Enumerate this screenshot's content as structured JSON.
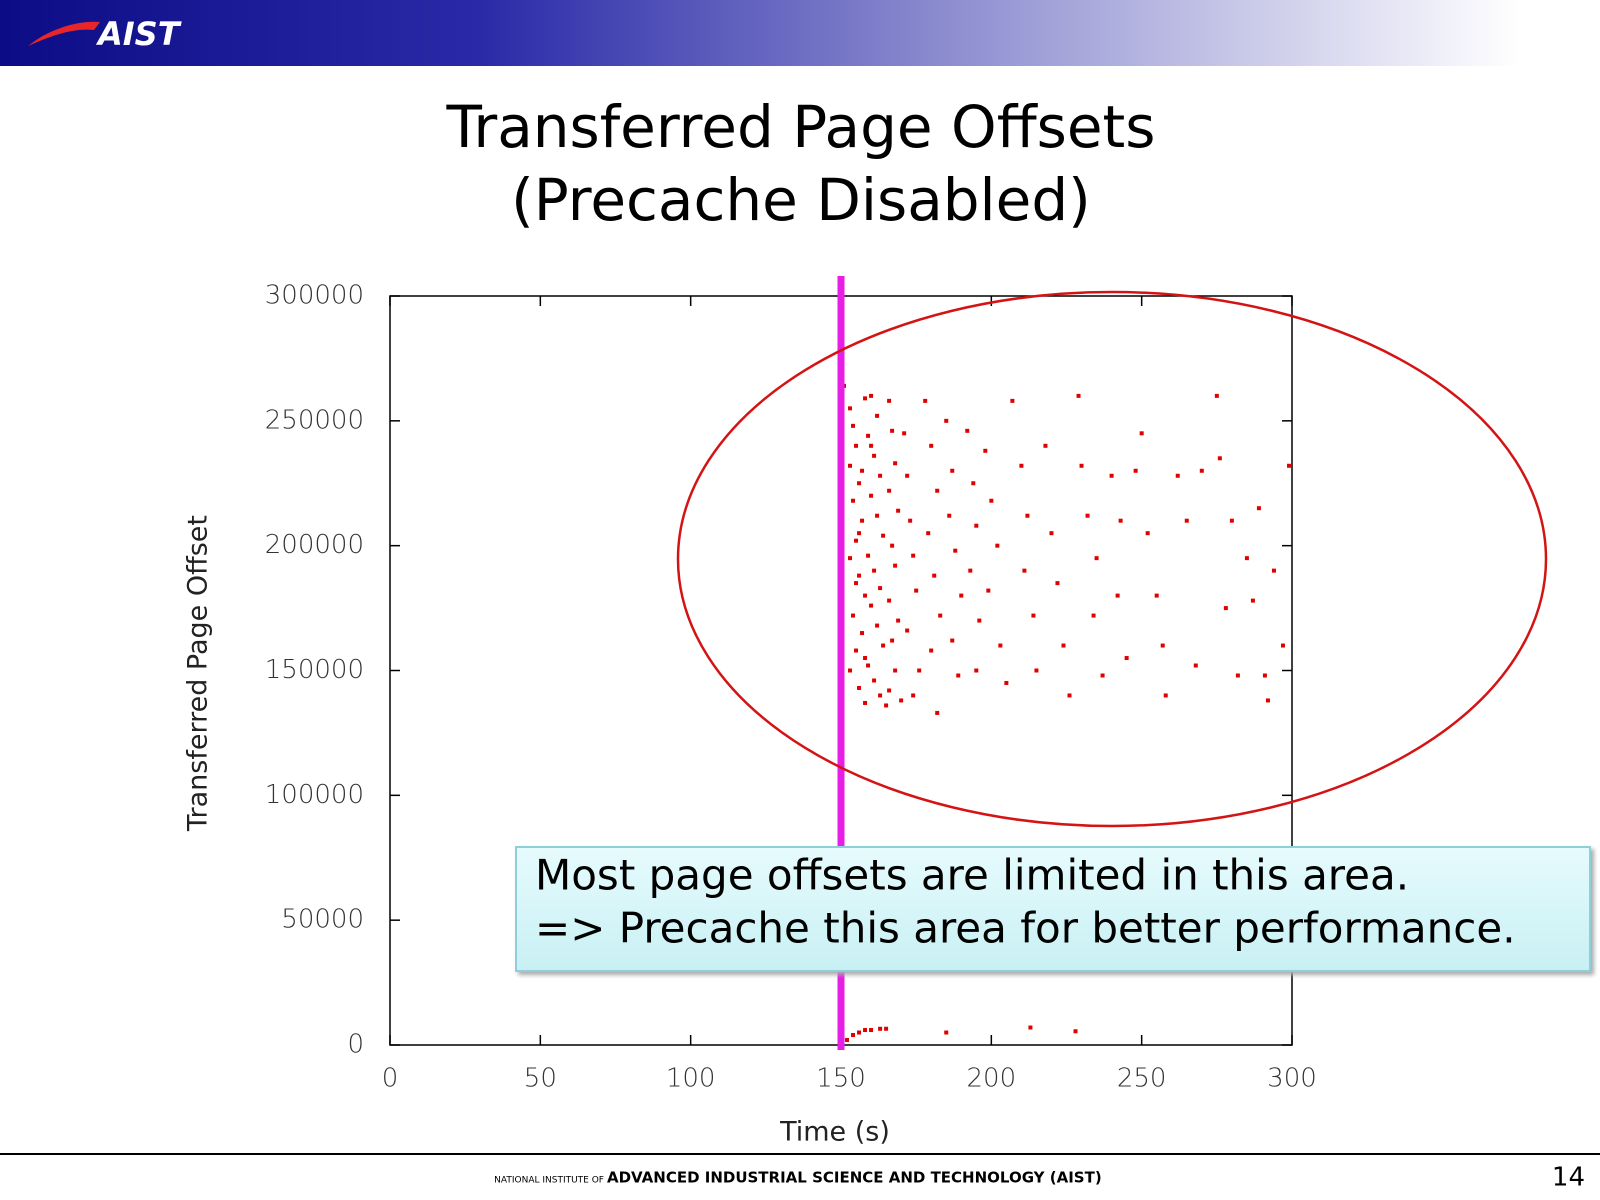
{
  "header": {
    "logo": "AIST"
  },
  "footer": {
    "prefix": "NATIONAL INSTITUTE OF",
    "name": "ADVANCED INDUSTRIAL SCIENCE AND TECHNOLOGY (AIST)",
    "page_number": "14"
  },
  "chart_data": {
    "type": "scatter",
    "title": "Transferred Page Offsets",
    "subtitle": "(Precache Disabled)",
    "x_label": "Time (s)",
    "y_label": "Transferred Page Offset",
    "xlim": [
      0,
      300
    ],
    "xticks": [
      0,
      50,
      100,
      150,
      200,
      250,
      300
    ],
    "ylim": [
      0,
      300000
    ],
    "yticks": [
      0,
      50000,
      100000,
      150000,
      200000,
      250000,
      300000
    ],
    "vline": {
      "x": 150,
      "color": "#e61ee6"
    },
    "annotation": [
      "Most page offsets are limited in this area.",
      "=> Precache this area for better performance."
    ],
    "series": [
      {
        "color": "#e00000",
        "x": [
          151,
          153,
          154,
          155,
          153,
          156,
          154,
          157,
          155,
          153,
          156,
          158,
          154,
          157,
          155,
          153,
          156,
          158,
          160,
          162,
          159,
          161,
          163,
          160,
          162,
          164,
          159,
          161,
          163,
          160,
          162,
          164,
          159,
          161,
          163,
          165,
          166,
          167,
          168,
          166,
          169,
          167,
          168,
          166,
          169,
          167,
          168,
          166,
          170,
          158,
          157,
          156,
          155,
          158,
          160,
          171,
          172,
          173,
          174,
          175,
          172,
          176,
          174,
          178,
          180,
          182,
          179,
          181,
          183,
          180,
          182,
          185,
          187,
          186,
          188,
          190,
          187,
          189,
          192,
          194,
          195,
          193,
          196,
          195,
          198,
          200,
          202,
          199,
          203,
          205,
          207,
          210,
          212,
          211,
          214,
          215,
          218,
          220,
          222,
          224,
          226,
          229,
          230,
          232,
          235,
          234,
          237,
          240,
          243,
          242,
          245,
          248,
          250,
          252,
          255,
          257,
          258,
          262,
          265,
          268,
          270,
          275,
          276,
          278,
          280,
          282,
          285,
          287,
          289,
          291,
          292,
          294,
          297,
          299,
          152,
          154,
          156,
          158,
          160,
          163,
          165,
          185,
          213,
          228
        ],
        "values": [
          264000,
          255000,
          248000,
          240000,
          232000,
          225000,
          218000,
          210000,
          202000,
          195000,
          188000,
          180000,
          172000,
          165000,
          158000,
          150000,
          143000,
          137000,
          260000,
          252000,
          244000,
          236000,
          228000,
          220000,
          212000,
          204000,
          196000,
          190000,
          183000,
          176000,
          168000,
          160000,
          152000,
          146000,
          140000,
          136000,
          258000,
          246000,
          233000,
          222000,
          214000,
          200000,
          192000,
          178000,
          170000,
          162000,
          150000,
          142000,
          138000,
          259000,
          230000,
          205000,
          185000,
          155000,
          240000,
          245000,
          228000,
          210000,
          196000,
          182000,
          166000,
          150000,
          140000,
          258000,
          240000,
          222000,
          205000,
          188000,
          172000,
          158000,
          133000,
          250000,
          230000,
          212000,
          198000,
          180000,
          162000,
          148000,
          246000,
          225000,
          208000,
          190000,
          170000,
          150000,
          238000,
          218000,
          200000,
          182000,
          160000,
          145000,
          258000,
          232000,
          212000,
          190000,
          172000,
          150000,
          240000,
          205000,
          185000,
          160000,
          140000,
          260000,
          232000,
          212000,
          195000,
          172000,
          148000,
          228000,
          210000,
          180000,
          155000,
          230000,
          245000,
          205000,
          180000,
          160000,
          140000,
          228000,
          210000,
          152000,
          230000,
          260000,
          235000,
          175000,
          210000,
          148000,
          195000,
          178000,
          215000,
          148000,
          138000,
          190000,
          160000,
          232000,
          2000,
          4000,
          5000,
          6000,
          6000,
          6500,
          6500,
          5000,
          7000,
          5500
        ]
      }
    ]
  }
}
